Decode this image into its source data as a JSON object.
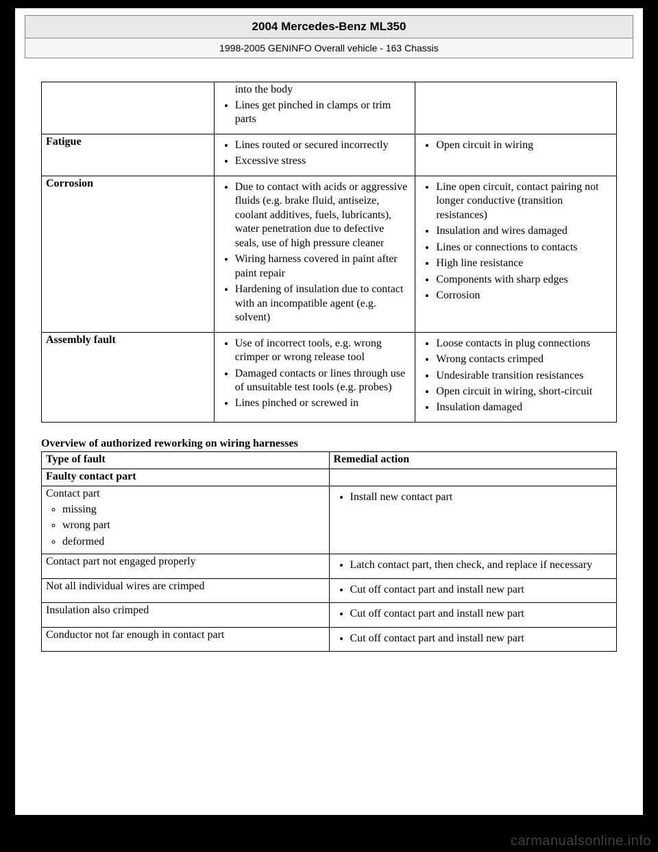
{
  "header": {
    "title": "2004 Mercedes-Benz ML350",
    "subtitle": "1998-2005 GENINFO Overall vehicle - 163 Chassis"
  },
  "table1_rows": [
    {
      "label": "",
      "causes": [
        "into the body",
        "Lines get pinched in clamps or trim parts"
      ],
      "causes_first_plain": true,
      "effects": []
    },
    {
      "label": "Fatigue",
      "causes": [
        "Lines routed or secured incorrectly",
        "Excessive stress"
      ],
      "effects": [
        "Open circuit in wiring"
      ]
    },
    {
      "label": "Corrosion",
      "causes": [
        "Due to contact with acids or aggressive fluids (e.g. brake fluid, antiseize, coolant additives, fuels, lubricants), water penetration due to defective seals, use of high pressure cleaner",
        "Wiring harness covered in paint after paint repair",
        "Hardening of insulation due to contact with an incompatible agent (e.g. solvent)"
      ],
      "effects": [
        "Line open circuit, contact pairing not longer conductive (transition resistances)",
        "Insulation and wires damaged",
        "Lines or connections to contacts",
        "High line resistance",
        "Components with sharp edges",
        "Corrosion"
      ]
    },
    {
      "label": "Assembly fault",
      "causes": [
        "Use of incorrect tools, e.g. wrong crimper or wrong release tool",
        "Damaged contacts or lines through use of unsuitable test tools (e.g. probes)",
        "Lines pinched or screwed in"
      ],
      "effects": [
        "Loose contacts in plug connections",
        "Wrong contacts crimped",
        "Undesirable transition resistances",
        "Open circuit in wiring, short-circuit",
        "Insulation damaged"
      ]
    }
  ],
  "section2_title": "Overview of authorized reworking on wiring harnesses",
  "table2_headers": {
    "a": "Type of fault",
    "b": "Remedial action"
  },
  "table2_group_header": "Faulty contact part",
  "table2_rows": [
    {
      "fault_text": "Contact part",
      "fault_sub": [
        "missing",
        "wrong part",
        "deformed"
      ],
      "remedy": [
        "Install new contact part"
      ]
    },
    {
      "fault_text": "Contact part not engaged properly",
      "remedy": [
        "Latch contact part, then check, and replace if necessary"
      ]
    },
    {
      "fault_text": "Not all individual wires are crimped",
      "remedy": [
        "Cut off contact part and install new part"
      ]
    },
    {
      "fault_text": "Insulation also crimped",
      "remedy": [
        "Cut off contact part and install new part"
      ]
    },
    {
      "fault_text": "Conductor not far enough in contact part",
      "remedy": [
        "Cut off contact part and install new part"
      ]
    }
  ],
  "watermark": "carmanualsonline.info"
}
